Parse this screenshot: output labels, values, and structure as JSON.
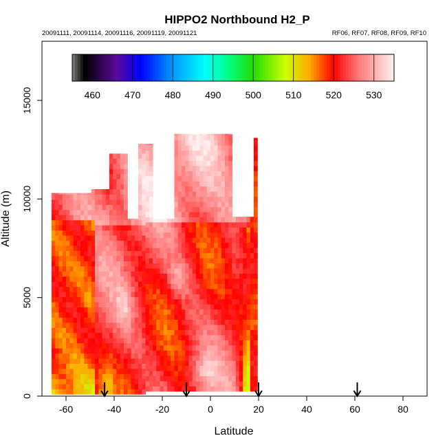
{
  "chart_data": {
    "type": "heatmap",
    "title": "HIPPO2 Northbound H2_P",
    "subtitle_left": "20091111, 20091114, 20091116, 20091119, 20091121",
    "subtitle_right": "RF06, RF07, RF08, RF09, RF10",
    "xlabel": "Latitude",
    "ylabel": "Altitude (m)",
    "xlim": [
      -70,
      90
    ],
    "ylim": [
      0,
      18000
    ],
    "xticks": [
      "-60",
      "-40",
      "-20",
      "0",
      "20",
      "40",
      "60",
      "80"
    ],
    "xtick_values": [
      -60,
      -40,
      -20,
      0,
      20,
      40,
      60,
      80
    ],
    "yticks": [
      "0",
      "5000",
      "10000",
      "15000"
    ],
    "ytick_values": [
      0,
      5000,
      10000,
      15000
    ],
    "colorbar": {
      "range": [
        455,
        535
      ],
      "tick_labels": [
        "460",
        "470",
        "480",
        "490",
        "500",
        "510",
        "520",
        "530"
      ],
      "tick_values": [
        460,
        470,
        480,
        490,
        500,
        510,
        520,
        530
      ],
      "stops": [
        {
          "v": 455,
          "c": "#808080"
        },
        {
          "v": 458,
          "c": "#000000"
        },
        {
          "v": 466,
          "c": "#5a0a9a"
        },
        {
          "v": 472,
          "c": "#0000ff"
        },
        {
          "v": 480,
          "c": "#0099ff"
        },
        {
          "v": 488,
          "c": "#00ffff"
        },
        {
          "v": 494,
          "c": "#00ff80"
        },
        {
          "v": 500,
          "c": "#22dd00"
        },
        {
          "v": 508,
          "c": "#ccff00"
        },
        {
          "v": 514,
          "c": "#ffaa00"
        },
        {
          "v": 520,
          "c": "#ff0000"
        },
        {
          "v": 526,
          "c": "#ff7777"
        },
        {
          "v": 535,
          "c": "#fff0f0"
        }
      ]
    },
    "flight_markers_latitude": [
      -44,
      -10,
      20,
      61
    ],
    "altitude_profile": [
      {
        "lat_min": -66,
        "lat_max": -50,
        "alt_top": 10300
      },
      {
        "lat_min": -50,
        "lat_max": -43,
        "alt_top": 10500
      },
      {
        "lat_min": -43,
        "lat_max": -35,
        "alt_top": 12300
      },
      {
        "lat_min": -35,
        "lat_max": -30,
        "alt_top": 9000
      },
      {
        "lat_min": -30,
        "lat_max": -25,
        "alt_top": 12800
      },
      {
        "lat_min": -25,
        "lat_max": -16,
        "alt_top": 9000
      },
      {
        "lat_min": -16,
        "lat_max": 8,
        "alt_top": 13300
      },
      {
        "lat_min": 8,
        "lat_max": 17,
        "alt_top": 9100
      },
      {
        "lat_min": 17,
        "lat_max": 19,
        "alt_top": 13100
      }
    ]
  }
}
